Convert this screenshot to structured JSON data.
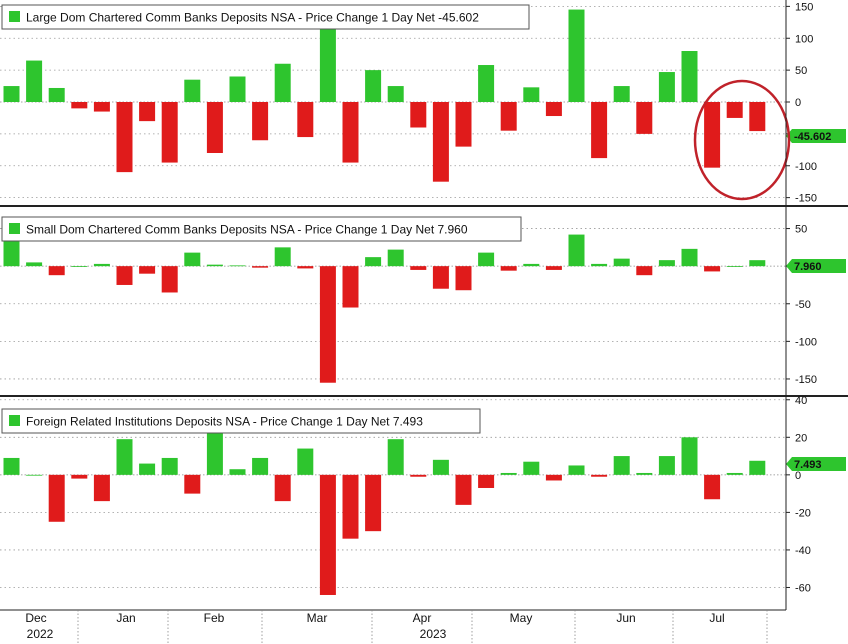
{
  "colors": {
    "positive": "#2ec52e",
    "negative": "#e01b1b",
    "annotation": "#c0222a"
  },
  "chart_data": [
    {
      "type": "bar",
      "title": "Large Dom Chartered Comm Banks Deposits NSA - Price Change 1 Day Net -45.602",
      "last_value_tag": "-45.602",
      "ylim": [
        -160,
        160
      ],
      "yticks": [
        150,
        100,
        50,
        0,
        -50,
        -100,
        -150
      ],
      "grid": true,
      "annotation": "red circle around last three bars",
      "values": [
        25,
        65,
        22,
        -10,
        -15,
        -110,
        -30,
        -95,
        35,
        -80,
        40,
        -60,
        60,
        -55,
        115,
        -95,
        50,
        25,
        -40,
        -125,
        -70,
        58,
        -45,
        23,
        -22,
        145,
        -88,
        25,
        -50,
        47,
        80,
        -103,
        -25,
        -45.602
      ]
    },
    {
      "type": "bar",
      "title": "Small Dom Chartered Comm Banks Deposits NSA - Price Change 1 Day Net 7.960",
      "last_value_tag": "7.960",
      "ylim": [
        -170,
        80
      ],
      "yticks": [
        50,
        0,
        -50,
        -100,
        -150
      ],
      "grid": true,
      "values": [
        45,
        5,
        -12,
        0,
        3,
        -25,
        -10,
        -35,
        18,
        2,
        1,
        -2,
        25,
        -3,
        -155,
        -55,
        12,
        22,
        -5,
        -30,
        -32,
        18,
        -6,
        3,
        -5,
        42,
        3,
        10,
        -12,
        8,
        23,
        -7,
        0,
        7.96
      ]
    },
    {
      "type": "bar",
      "title": "Foreign Related Institutions Deposits NSA - Price Change 1 Day Net 7.493",
      "last_value_tag": "7.493",
      "ylim": [
        -72,
        42
      ],
      "yticks": [
        40,
        20,
        0,
        -20,
        -40,
        -60
      ],
      "grid": true,
      "values": [
        9,
        0,
        -25,
        -2,
        -14,
        19,
        6,
        9,
        -10,
        24,
        3,
        9,
        -14,
        14,
        -64,
        -34,
        -30,
        19,
        -1,
        8,
        -16,
        -7,
        1,
        7,
        -3,
        5,
        -1,
        10,
        1,
        10,
        20,
        -13,
        1,
        7.493
      ]
    }
  ],
  "x_axis": {
    "months": [
      "Dec",
      "Jan",
      "Feb",
      "Mar",
      "Apr",
      "May",
      "Jun",
      "Jul"
    ],
    "years": [
      "2022",
      "2023"
    ]
  }
}
